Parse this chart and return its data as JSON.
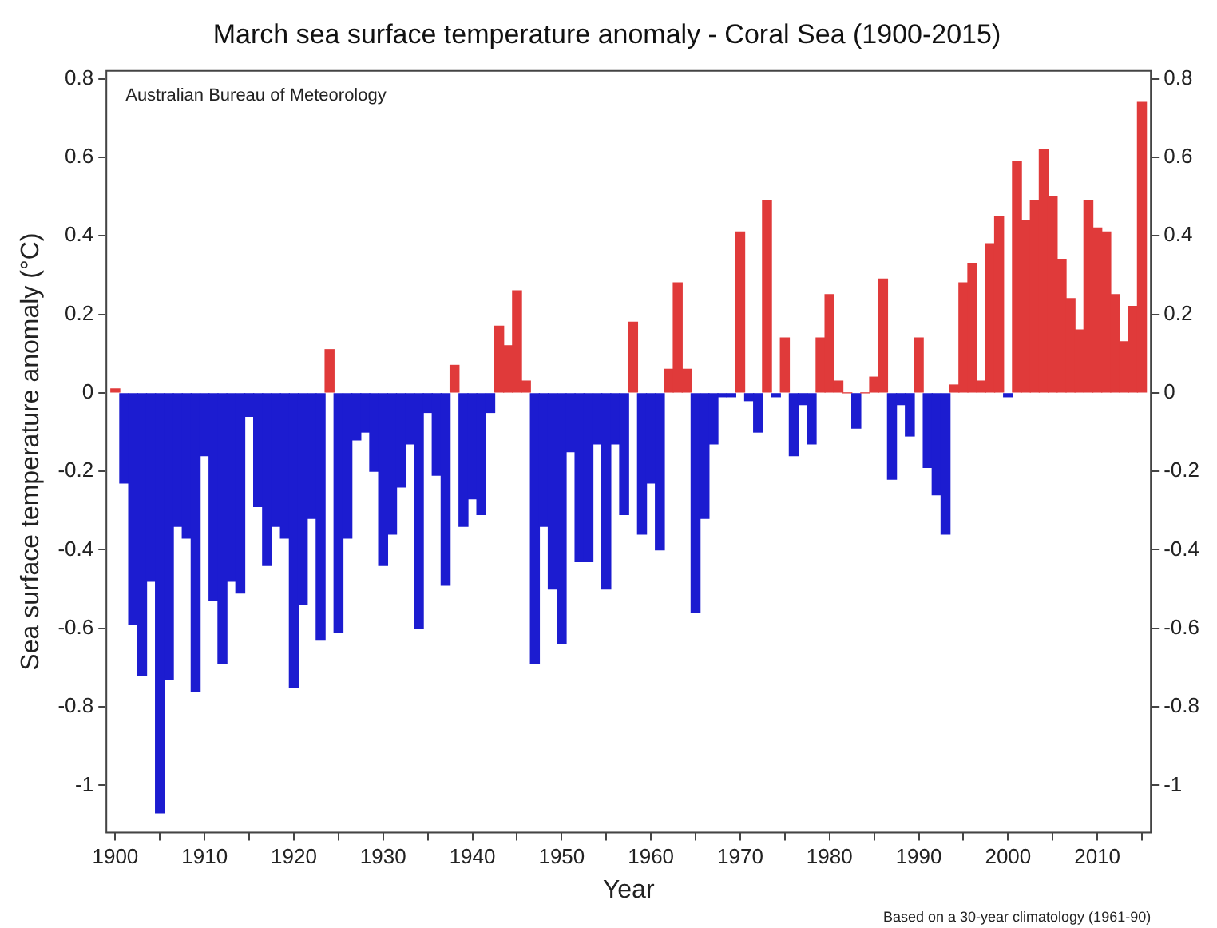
{
  "chart_data": {
    "type": "bar",
    "title": "March sea surface temperature anomaly - Coral Sea (1900-2015)",
    "xlabel": "Year",
    "ylabel": "Sea surface temperature anomaly (°C)",
    "annotations": [
      "Australian Bureau of Meteorology",
      "Based on a 30-year climatology (1961-90)"
    ],
    "x": [
      1900,
      1901,
      1902,
      1903,
      1904,
      1905,
      1906,
      1907,
      1908,
      1909,
      1910,
      1911,
      1912,
      1913,
      1914,
      1915,
      1916,
      1917,
      1918,
      1919,
      1920,
      1921,
      1922,
      1923,
      1924,
      1925,
      1926,
      1927,
      1928,
      1929,
      1930,
      1931,
      1932,
      1933,
      1934,
      1935,
      1936,
      1937,
      1938,
      1939,
      1940,
      1941,
      1942,
      1943,
      1944,
      1945,
      1946,
      1947,
      1948,
      1949,
      1950,
      1951,
      1952,
      1953,
      1954,
      1955,
      1956,
      1957,
      1958,
      1959,
      1960,
      1961,
      1962,
      1963,
      1964,
      1965,
      1966,
      1967,
      1968,
      1969,
      1970,
      1971,
      1972,
      1973,
      1974,
      1975,
      1976,
      1977,
      1978,
      1979,
      1980,
      1981,
      1982,
      1983,
      1984,
      1985,
      1986,
      1987,
      1988,
      1989,
      1990,
      1991,
      1992,
      1993,
      1994,
      1995,
      1996,
      1997,
      1998,
      1999,
      2000,
      2001,
      2002,
      2003,
      2004,
      2005,
      2006,
      2007,
      2008,
      2009,
      2010,
      2011,
      2012,
      2013,
      2014,
      2015
    ],
    "values": [
      0.01,
      -0.23,
      -0.59,
      -0.72,
      -0.48,
      -1.07,
      -0.73,
      -0.34,
      -0.37,
      -0.76,
      -0.16,
      -0.53,
      -0.69,
      -0.48,
      -0.51,
      -0.06,
      -0.29,
      -0.44,
      -0.34,
      -0.37,
      -0.75,
      -0.54,
      -0.32,
      -0.63,
      0.11,
      -0.61,
      -0.37,
      -0.12,
      -0.1,
      -0.2,
      -0.44,
      -0.36,
      -0.24,
      -0.13,
      -0.6,
      -0.05,
      -0.21,
      -0.49,
      0.07,
      -0.34,
      -0.27,
      -0.31,
      -0.05,
      0.17,
      0.12,
      0.26,
      0.03,
      -0.69,
      -0.34,
      -0.5,
      -0.64,
      -0.15,
      -0.43,
      -0.43,
      -0.13,
      -0.5,
      -0.13,
      -0.31,
      0.18,
      -0.36,
      -0.23,
      -0.4,
      0.06,
      0.28,
      0.06,
      -0.56,
      -0.32,
      -0.13,
      -0.01,
      -0.01,
      0.41,
      -0.02,
      -0.1,
      0.49,
      -0.01,
      0.14,
      -0.16,
      -0.03,
      -0.13,
      0.14,
      0.25,
      0.03,
      0,
      -0.09,
      0,
      0.04,
      0.29,
      -0.22,
      -0.03,
      -0.11,
      0.14,
      -0.19,
      -0.26,
      -0.36,
      0.02,
      0.28,
      0.33,
      0.03,
      0.38,
      0.45,
      -0.01,
      0.59,
      0.44,
      0.49,
      0.62,
      0.5,
      0.34,
      0.24,
      0.16,
      0.49,
      0.42,
      0.41,
      0.25,
      0.13,
      0.22,
      0.74
    ],
    "colors": [
      "#e03a3a",
      "#1c1cd0",
      "#1c1cd0",
      "#1c1cd0",
      "#1c1cd0",
      "#1c1cd0",
      "#1c1cd0",
      "#1c1cd0",
      "#1c1cd0",
      "#1c1cd0",
      "#1c1cd0",
      "#1c1cd0",
      "#1c1cd0",
      "#1c1cd0",
      "#1c1cd0",
      "#1c1cd0",
      "#1c1cd0",
      "#1c1cd0",
      "#1c1cd0",
      "#1c1cd0",
      "#1c1cd0",
      "#1c1cd0",
      "#1c1cd0",
      "#1c1cd0",
      "#e03a3a",
      "#1c1cd0",
      "#1c1cd0",
      "#1c1cd0",
      "#1c1cd0",
      "#1c1cd0",
      "#1c1cd0",
      "#1c1cd0",
      "#1c1cd0",
      "#1c1cd0",
      "#1c1cd0",
      "#1c1cd0",
      "#1c1cd0",
      "#1c1cd0",
      "#e03a3a",
      "#1c1cd0",
      "#1c1cd0",
      "#1c1cd0",
      "#1c1cd0",
      "#e03a3a",
      "#e03a3a",
      "#e03a3a",
      "#e03a3a",
      "#1c1cd0",
      "#1c1cd0",
      "#1c1cd0",
      "#1c1cd0",
      "#1c1cd0",
      "#1c1cd0",
      "#1c1cd0",
      "#1c1cd0",
      "#1c1cd0",
      "#1c1cd0",
      "#1c1cd0",
      "#e03a3a",
      "#1c1cd0",
      "#1c1cd0",
      "#1c1cd0",
      "#e03a3a",
      "#e03a3a",
      "#e03a3a",
      "#1c1cd0",
      "#1c1cd0",
      "#1c1cd0",
      "#1c1cd0",
      "#1c1cd0",
      "#e03a3a",
      "#1c1cd0",
      "#1c1cd0",
      "#e03a3a",
      "#1c1cd0",
      "#e03a3a",
      "#1c1cd0",
      "#1c1cd0",
      "#1c1cd0",
      "#e03a3a",
      "#e03a3a",
      "#e03a3a",
      "#e03a3a",
      "#1c1cd0",
      "#e03a3a",
      "#e03a3a",
      "#e03a3a",
      "#1c1cd0",
      "#1c1cd0",
      "#1c1cd0",
      "#e03a3a",
      "#1c1cd0",
      "#1c1cd0",
      "#1c1cd0",
      "#e03a3a",
      "#e03a3a",
      "#e03a3a",
      "#e03a3a",
      "#e03a3a",
      "#e03a3a",
      "#1c1cd0",
      "#e03a3a",
      "#e03a3a",
      "#e03a3a",
      "#e03a3a",
      "#e03a3a",
      "#e03a3a",
      "#e03a3a",
      "#e03a3a",
      "#e03a3a",
      "#e03a3a",
      "#e03a3a",
      "#e03a3a",
      "#e03a3a",
      "#e03a3a",
      "#e03a3a"
    ],
    "xlim": [
      1899,
      2016
    ],
    "xticks": [
      1900,
      {
        "value": 1905,
        "label": null
      },
      1910,
      {
        "value": 1915,
        "label": null
      },
      1920,
      {
        "value": 1925,
        "label": null
      },
      1930,
      {
        "value": 1935,
        "label": null
      },
      1940,
      {
        "value": 1945,
        "label": null
      },
      1950,
      {
        "value": 1955,
        "label": null
      },
      1960,
      {
        "value": 1965,
        "label": null
      },
      1970,
      {
        "value": 1975,
        "label": null
      },
      1980,
      {
        "value": 1985,
        "label": null
      },
      1990,
      {
        "value": 1995,
        "label": null
      },
      2000,
      {
        "value": 2005,
        "label": null
      },
      2010,
      {
        "value": 2015,
        "label": null
      }
    ],
    "ylim": [
      -1.12,
      0.82
    ],
    "yticks": [
      -1,
      -0.8,
      -0.6,
      -0.4,
      -0.2,
      0,
      0.2,
      0.4,
      0.6,
      0.8
    ],
    "y2lim": [
      -1.12,
      0.82
    ],
    "y2ticks": [
      -1,
      -0.8,
      -0.6,
      -0.4,
      -0.2,
      0,
      0.2,
      0.4,
      0.6,
      0.8
    ],
    "grid": false,
    "legend": false
  }
}
